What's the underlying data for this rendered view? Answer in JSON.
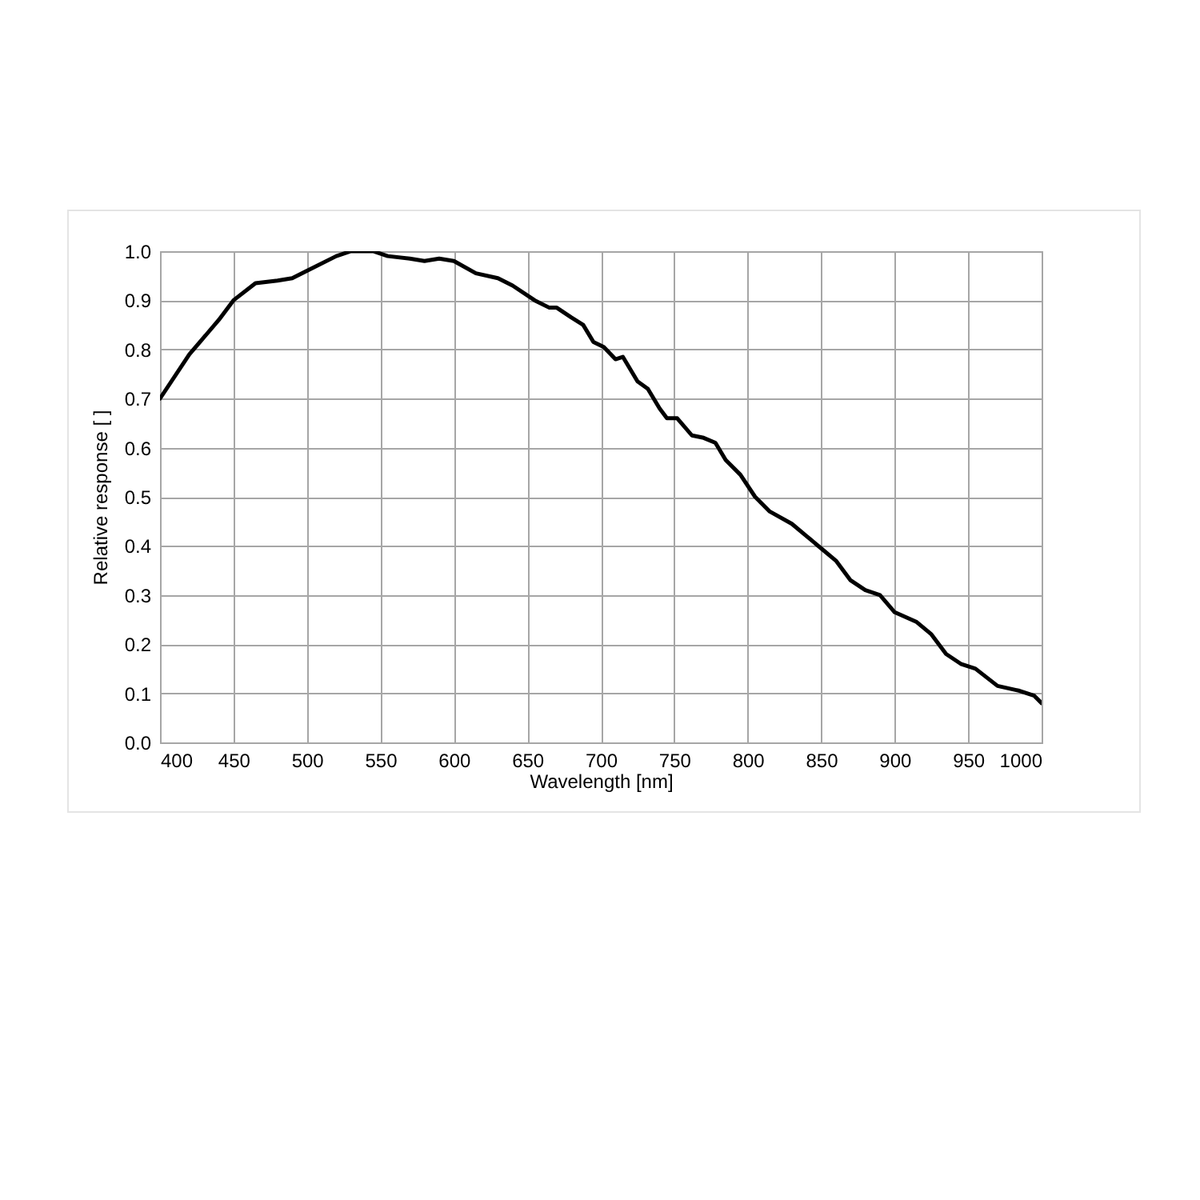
{
  "chart_data": {
    "type": "line",
    "xlabel": "Wavelength [nm]",
    "ylabel": "Relative response [ ]",
    "x": [
      400,
      420,
      440,
      450,
      465,
      480,
      490,
      500,
      520,
      530,
      545,
      555,
      570,
      580,
      590,
      600,
      615,
      630,
      640,
      655,
      665,
      670,
      680,
      688,
      695,
      702,
      710,
      715,
      725,
      732,
      740,
      745,
      752,
      762,
      770,
      778,
      785,
      795,
      805,
      815,
      830,
      840,
      850,
      860,
      870,
      880,
      890,
      900,
      915,
      925,
      935,
      945,
      955,
      970,
      985,
      995,
      1000
    ],
    "series": [
      {
        "color": "#000000",
        "values": [
          0.7,
          0.79,
          0.86,
          0.9,
          0.935,
          0.94,
          0.945,
          0.96,
          0.99,
          1.0,
          1.0,
          0.99,
          0.985,
          0.98,
          0.985,
          0.98,
          0.955,
          0.945,
          0.93,
          0.9,
          0.885,
          0.885,
          0.865,
          0.85,
          0.815,
          0.805,
          0.78,
          0.785,
          0.735,
          0.72,
          0.68,
          0.66,
          0.66,
          0.625,
          0.62,
          0.61,
          0.575,
          0.545,
          0.5,
          0.47,
          0.445,
          0.42,
          0.395,
          0.37,
          0.33,
          0.31,
          0.3,
          0.265,
          0.245,
          0.22,
          0.18,
          0.16,
          0.15,
          0.115,
          0.105,
          0.095,
          0.08
        ]
      }
    ],
    "xlim": [
      400,
      1000
    ],
    "xticks": [
      400,
      450,
      500,
      550,
      600,
      650,
      700,
      750,
      800,
      850,
      900,
      950,
      1000
    ],
    "ylim": [
      0,
      1
    ],
    "yticks": [
      {
        "value": 0,
        "label": "0.0"
      },
      {
        "value": 0.1,
        "label": "0.1"
      },
      {
        "value": 0.2,
        "label": "0.2"
      },
      {
        "value": 0.3,
        "label": "0.3"
      },
      {
        "value": 0.4,
        "label": "0.4"
      },
      {
        "value": 0.5,
        "label": "0.5"
      },
      {
        "value": 0.6,
        "label": "0.6"
      },
      {
        "value": 0.7,
        "label": "0.7"
      },
      {
        "value": 0.8,
        "label": "0.8"
      },
      {
        "value": 0.9,
        "label": "0.9"
      },
      {
        "value": 1,
        "label": "1.0"
      }
    ],
    "grid": true,
    "marker": "none",
    "line_style": "solid"
  }
}
